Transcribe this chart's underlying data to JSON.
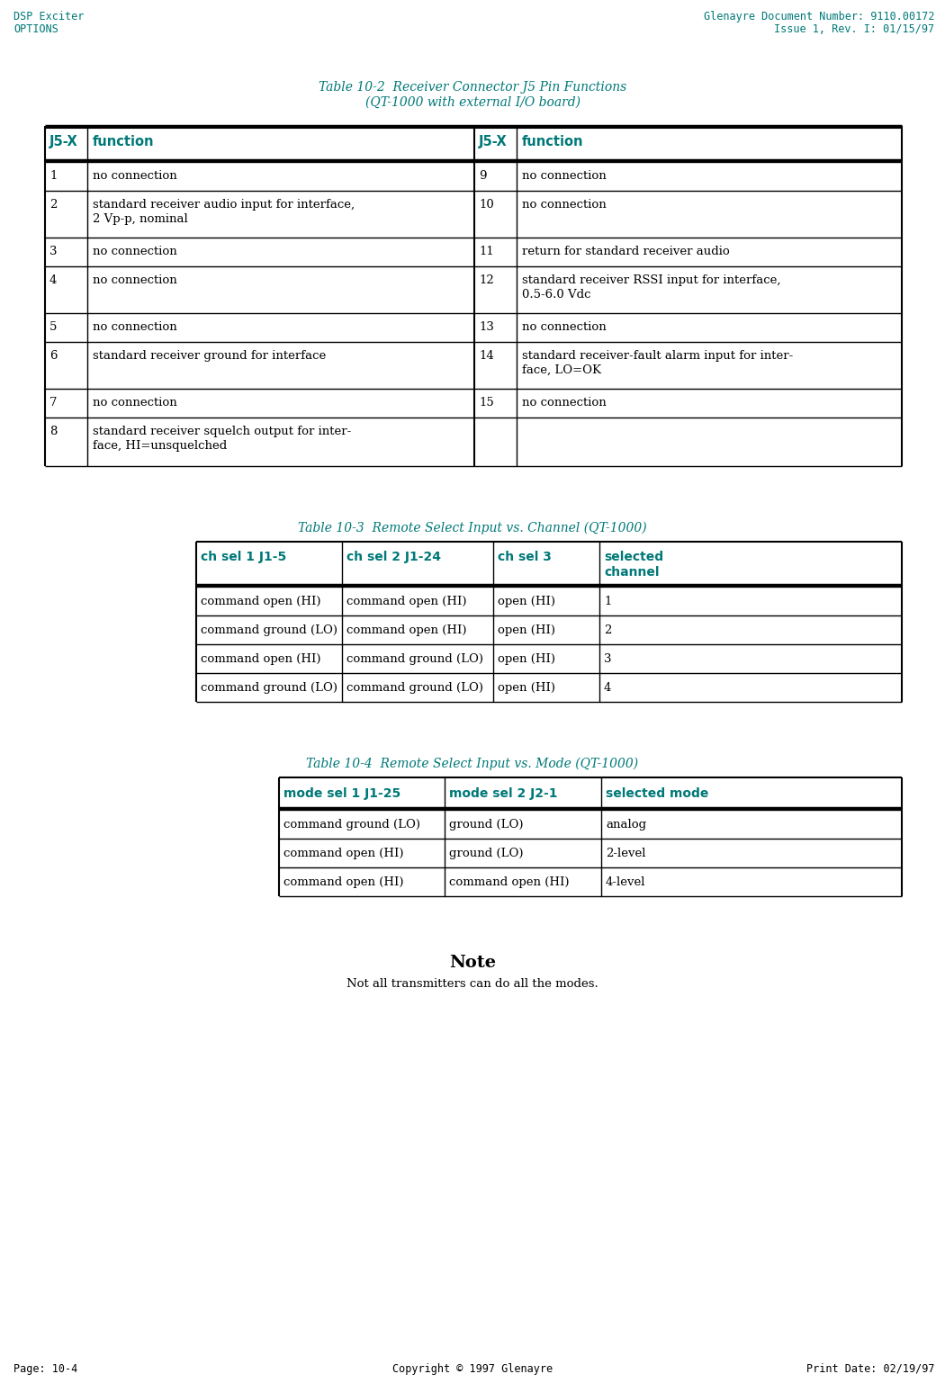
{
  "header_left": [
    "DSP Exciter",
    "OPTIONS"
  ],
  "header_right": [
    "Glenayre Document Number: 9110.00172",
    "Issue 1, Rev. I: 01/15/97"
  ],
  "footer_left": "Page: 10-4",
  "footer_center": "Copyright © 1997 Glenayre",
  "footer_right": "Print Date: 02/19/97",
  "teal_color": "#007878",
  "table1_title_line1": "Table 10-2  Receiver Connector J5 Pin Functions",
  "table1_title_line2": "(QT-1000 with external I/O board)",
  "table1_headers": [
    "J5-X",
    "function",
    "J5-X",
    "function"
  ],
  "table1_rows": [
    [
      "1",
      "no connection",
      "9",
      "no connection"
    ],
    [
      "2",
      "standard receiver audio input for interface,\n2 Vp-p, nominal",
      "10",
      "no connection"
    ],
    [
      "3",
      "no connection",
      "11",
      "return for standard receiver audio"
    ],
    [
      "4",
      "no connection",
      "12",
      "standard receiver RSSI input for interface,\n0.5-6.0 Vdc"
    ],
    [
      "5",
      "no connection",
      "13",
      "no connection"
    ],
    [
      "6",
      "standard receiver ground for interface",
      "14",
      "standard receiver-fault alarm input for inter-\nface, LO=OK"
    ],
    [
      "7",
      "no connection",
      "15",
      "no connection"
    ],
    [
      "8",
      "standard receiver squelch output for inter-\nface, HI=unsquelched",
      "",
      ""
    ]
  ],
  "table2_title": "Table 10-3  Remote Select Input vs. Channel (QT-1000)",
  "table2_headers": [
    "ch sel 1 J1-5",
    "ch sel 2 J1-24",
    "ch sel 3",
    "selected\nchannel"
  ],
  "table2_rows": [
    [
      "command open (HI)",
      "command open (HI)",
      "open (HI)",
      "1"
    ],
    [
      "command ground (LO)",
      "command open (HI)",
      "open (HI)",
      "2"
    ],
    [
      "command open (HI)",
      "command ground (LO)",
      "open (HI)",
      "3"
    ],
    [
      "command ground (LO)",
      "command ground (LO)",
      "open (HI)",
      "4"
    ]
  ],
  "table3_title": "Table 10-4  Remote Select Input vs. Mode (QT-1000)",
  "table3_headers": [
    "mode sel 1 J1-25",
    "mode sel 2 J2-1",
    "selected mode"
  ],
  "table3_rows": [
    [
      "command ground (LO)",
      "ground (LO)",
      "analog"
    ],
    [
      "command open (HI)",
      "ground (LO)",
      "2-level"
    ],
    [
      "command open (HI)",
      "command open (HI)",
      "4-level"
    ]
  ],
  "note_title": "Note",
  "note_text": "Not all transmitters can do all the modes.",
  "bg_color": "#ffffff",
  "text_color": "#000000"
}
